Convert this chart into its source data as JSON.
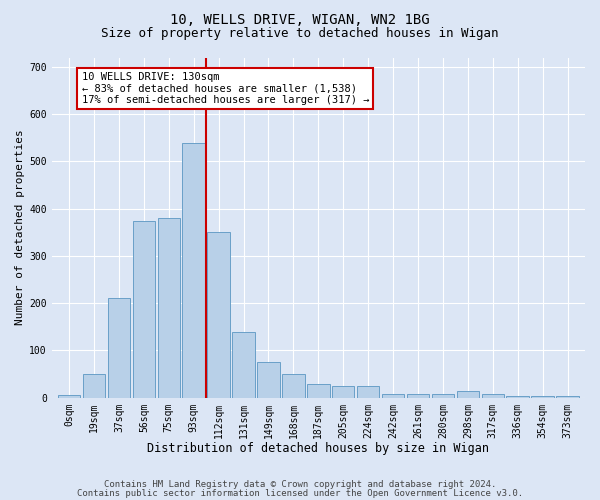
{
  "title1": "10, WELLS DRIVE, WIGAN, WN2 1BG",
  "title2": "Size of property relative to detached houses in Wigan",
  "xlabel": "Distribution of detached houses by size in Wigan",
  "ylabel": "Number of detached properties",
  "bar_labels": [
    "0sqm",
    "19sqm",
    "37sqm",
    "56sqm",
    "75sqm",
    "93sqm",
    "112sqm",
    "131sqm",
    "149sqm",
    "168sqm",
    "187sqm",
    "205sqm",
    "224sqm",
    "242sqm",
    "261sqm",
    "280sqm",
    "298sqm",
    "317sqm",
    "336sqm",
    "354sqm",
    "373sqm"
  ],
  "bar_heights": [
    5,
    50,
    210,
    375,
    380,
    540,
    350,
    140,
    75,
    50,
    30,
    25,
    25,
    7,
    7,
    7,
    15,
    7,
    4,
    4,
    4
  ],
  "bar_color": "#b8d0e8",
  "bar_edgecolor": "#6aa0c8",
  "bar_linewidth": 0.7,
  "vline_x_index": 5.5,
  "vline_color": "#cc0000",
  "vline_linewidth": 1.5,
  "annotation_line1": "10 WELLS DRIVE: 130sqm",
  "annotation_line2": "← 83% of detached houses are smaller (1,538)",
  "annotation_line3": "17% of semi-detached houses are larger (317) →",
  "annotation_boxcolor": "white",
  "annotation_edgecolor": "#cc0000",
  "ylim": [
    0,
    720
  ],
  "yticks": [
    0,
    100,
    200,
    300,
    400,
    500,
    600,
    700
  ],
  "bg_color": "#dce6f5",
  "plot_bg_color": "#dce6f5",
  "grid_color": "#ffffff",
  "footer1": "Contains HM Land Registry data © Crown copyright and database right 2024.",
  "footer2": "Contains public sector information licensed under the Open Government Licence v3.0.",
  "title1_fontsize": 10,
  "title2_fontsize": 9,
  "xlabel_fontsize": 8.5,
  "ylabel_fontsize": 8,
  "tick_fontsize": 7,
  "annotation_fontsize": 7.5,
  "footer_fontsize": 6.5
}
